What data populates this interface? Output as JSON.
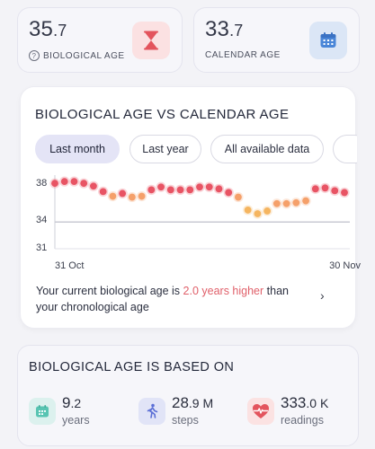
{
  "bio_age_card": {
    "value_int": "35",
    "value_dec": ".7",
    "label": "BIOLOGICAL AGE",
    "help_glyph": "?",
    "icon": "hourglass-icon"
  },
  "cal_age_card": {
    "value_int": "33",
    "value_dec": ".7",
    "label": "CALENDAR AGE",
    "icon": "calendar-icon"
  },
  "chart_card": {
    "title": "BIOLOGICAL AGE VS CALENDAR AGE",
    "tabs": [
      {
        "label": "Last month",
        "active": true
      },
      {
        "label": "Last year",
        "active": false
      },
      {
        "label": "All available data",
        "active": false
      }
    ],
    "insight": {
      "prefix": "Your current biological age is ",
      "highlight": "2.0 years higher",
      "suffix": " than your chronological age"
    },
    "chevron": "›"
  },
  "chart_data": {
    "type": "scatter",
    "x_tick_labels": [
      "31 Oct",
      "30 Nov"
    ],
    "y_ticks": [
      31,
      34,
      38
    ],
    "ylim": [
      30.8,
      38.6
    ],
    "reference_line": 33.7,
    "series": [
      {
        "values": [
          37.9,
          38.1,
          38.1,
          37.9,
          37.6,
          37.0,
          36.5,
          36.8,
          36.4,
          36.5,
          37.2,
          37.5,
          37.2,
          37.2,
          37.2,
          37.5,
          37.5,
          37.3,
          36.9,
          36.4,
          35.0,
          34.6,
          34.9,
          35.7,
          35.7,
          35.8,
          36.0,
          37.3,
          37.4,
          37.1,
          36.9
        ],
        "colors": [
          "#e85464",
          "#e85464",
          "#e85464",
          "#e85464",
          "#e85464",
          "#e85464",
          "#f5a06a",
          "#e85464",
          "#f5a06a",
          "#f5a06a",
          "#e85464",
          "#e85464",
          "#e85464",
          "#e85464",
          "#e85464",
          "#e85464",
          "#e85464",
          "#e85464",
          "#e85464",
          "#f5a06a",
          "#f5b560",
          "#f5b560",
          "#f5b560",
          "#f5a06a",
          "#f5a06a",
          "#f5a06a",
          "#f5a06a",
          "#e85464",
          "#e85464",
          "#e85464",
          "#e85464"
        ]
      }
    ],
    "grid": false
  },
  "based_on": {
    "title": "BIOLOGICAL AGE IS BASED ON",
    "metrics": [
      {
        "value": "9",
        "dec": ".2",
        "unit": "",
        "label": "years",
        "icon": "calendar-icon"
      },
      {
        "value": "28",
        "dec": ".9",
        "unit": " M",
        "label": "steps",
        "icon": "walking-icon"
      },
      {
        "value": "333",
        "dec": ".0",
        "unit": " K",
        "label": "readings",
        "icon": "heart-pulse-icon"
      }
    ]
  }
}
